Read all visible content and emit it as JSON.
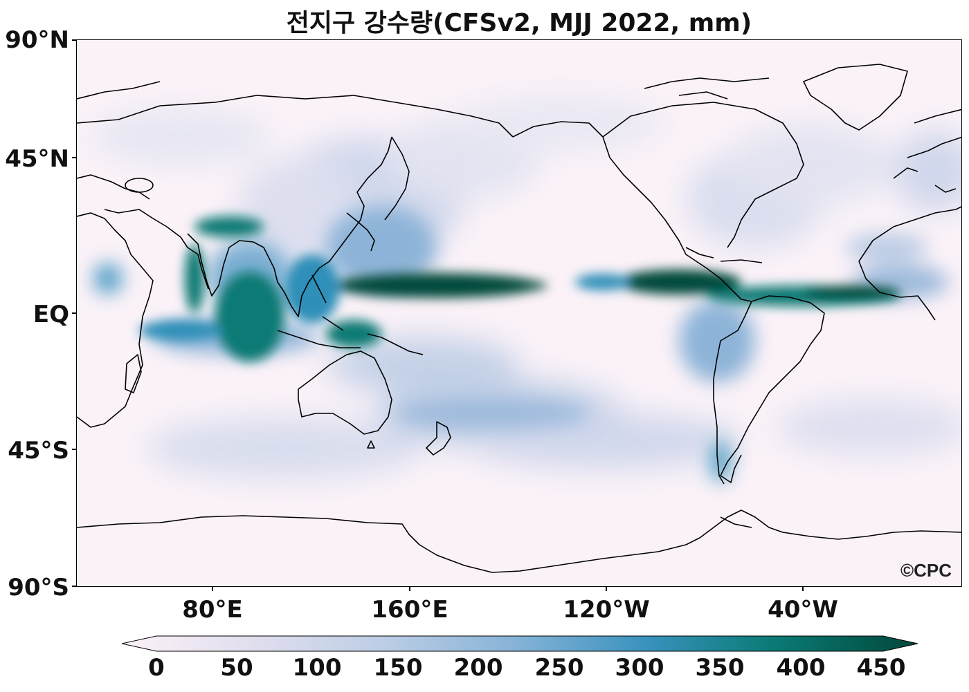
{
  "title": "전지구 강수량(CFSv2, MJJ 2022, mm)",
  "map": {
    "y_labels": [
      "90°N",
      "45°N",
      "EQ",
      "45°S",
      "90°S"
    ],
    "x_labels": [
      "80°E",
      "160°E",
      "120°W",
      "40°W"
    ],
    "logo": "©CPC",
    "colors": {
      "low": "#fbf2f8",
      "mid_low": "#c9d3ea",
      "mid": "#7aaed2",
      "mid_high": "#2f8fb8",
      "high": "#0a7a74",
      "max": "#01483b"
    }
  },
  "colorbar": {
    "labels": [
      "0",
      "50",
      "100",
      "150",
      "200",
      "250",
      "300",
      "350",
      "400",
      "450"
    ]
  }
}
